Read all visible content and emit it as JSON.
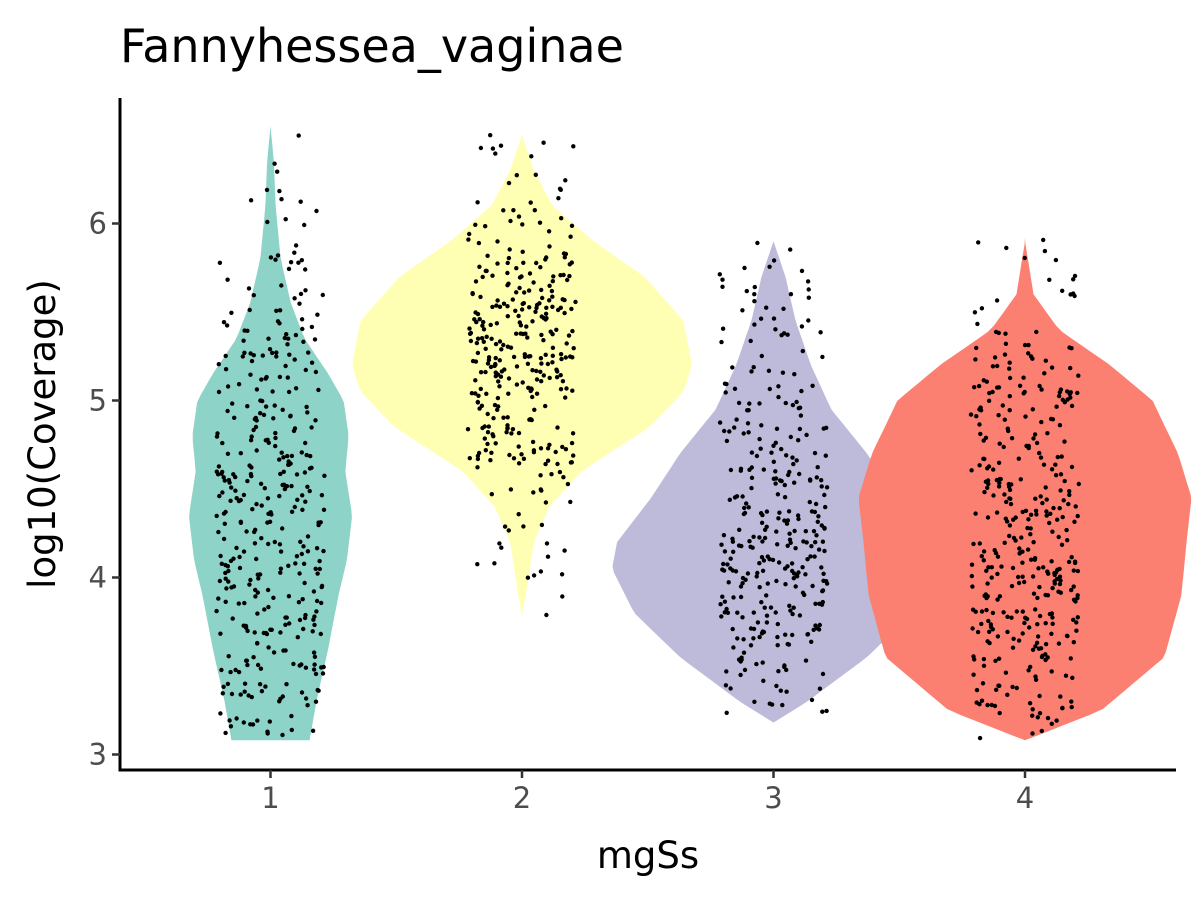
{
  "chart_data": {
    "type": "violin",
    "title": "Fannyhessea_vaginae",
    "xlabel": "mgSs",
    "ylabel": "log10(Coverage)",
    "categories": [
      "1",
      "2",
      "3",
      "4"
    ],
    "y_ticks": [
      "3",
      "4",
      "5",
      "6"
    ],
    "ylim": [
      2.92,
      6.72
    ],
    "grid": false,
    "legend": "none",
    "jitter_points": true,
    "groups": [
      {
        "category": "1",
        "color": "#8DD3C7",
        "min": 3.08,
        "max": 6.55,
        "median": 4.4,
        "density": [
          [
            3.08,
            0.23
          ],
          [
            3.3,
            0.27
          ],
          [
            3.6,
            0.34
          ],
          [
            3.9,
            0.4
          ],
          [
            4.1,
            0.45
          ],
          [
            4.35,
            0.48
          ],
          [
            4.6,
            0.44
          ],
          [
            4.8,
            0.46
          ],
          [
            5.0,
            0.43
          ],
          [
            5.15,
            0.34
          ],
          [
            5.35,
            0.2
          ],
          [
            5.55,
            0.12
          ],
          [
            5.8,
            0.06
          ],
          [
            6.1,
            0.03
          ],
          [
            6.35,
            0.02
          ],
          [
            6.55,
            0.0
          ]
        ],
        "points": 380
      },
      {
        "category": "2",
        "color": "#FFFFB3",
        "min": 3.78,
        "max": 6.5,
        "median": 5.25,
        "density": [
          [
            3.78,
            0.0
          ],
          [
            3.95,
            0.03
          ],
          [
            4.2,
            0.07
          ],
          [
            4.4,
            0.16
          ],
          [
            4.6,
            0.35
          ],
          [
            4.85,
            0.75
          ],
          [
            5.05,
            0.95
          ],
          [
            5.2,
            1.0
          ],
          [
            5.45,
            0.95
          ],
          [
            5.7,
            0.72
          ],
          [
            5.9,
            0.42
          ],
          [
            6.1,
            0.18
          ],
          [
            6.3,
            0.07
          ],
          [
            6.5,
            0.0
          ]
        ],
        "points": 330
      },
      {
        "category": "3",
        "color": "#BEBADA",
        "min": 3.18,
        "max": 5.9,
        "median": 4.2,
        "density": [
          [
            3.18,
            0.0
          ],
          [
            3.3,
            0.2
          ],
          [
            3.55,
            0.55
          ],
          [
            3.8,
            0.82
          ],
          [
            4.05,
            0.95
          ],
          [
            4.2,
            0.92
          ],
          [
            4.45,
            0.72
          ],
          [
            4.7,
            0.55
          ],
          [
            4.95,
            0.34
          ],
          [
            5.2,
            0.22
          ],
          [
            5.45,
            0.13
          ],
          [
            5.7,
            0.07
          ],
          [
            5.9,
            0.0
          ]
        ],
        "points": 330
      },
      {
        "category": "4",
        "color": "#FB8072",
        "min": 3.08,
        "max": 5.92,
        "median": 4.3,
        "density": [
          [
            3.08,
            0.0
          ],
          [
            3.25,
            0.45
          ],
          [
            3.55,
            0.82
          ],
          [
            3.9,
            0.92
          ],
          [
            4.2,
            0.95
          ],
          [
            4.45,
            0.98
          ],
          [
            4.7,
            0.9
          ],
          [
            5.0,
            0.75
          ],
          [
            5.2,
            0.5
          ],
          [
            5.4,
            0.2
          ],
          [
            5.6,
            0.05
          ],
          [
            5.9,
            0.0
          ]
        ],
        "points": 380
      }
    ]
  }
}
